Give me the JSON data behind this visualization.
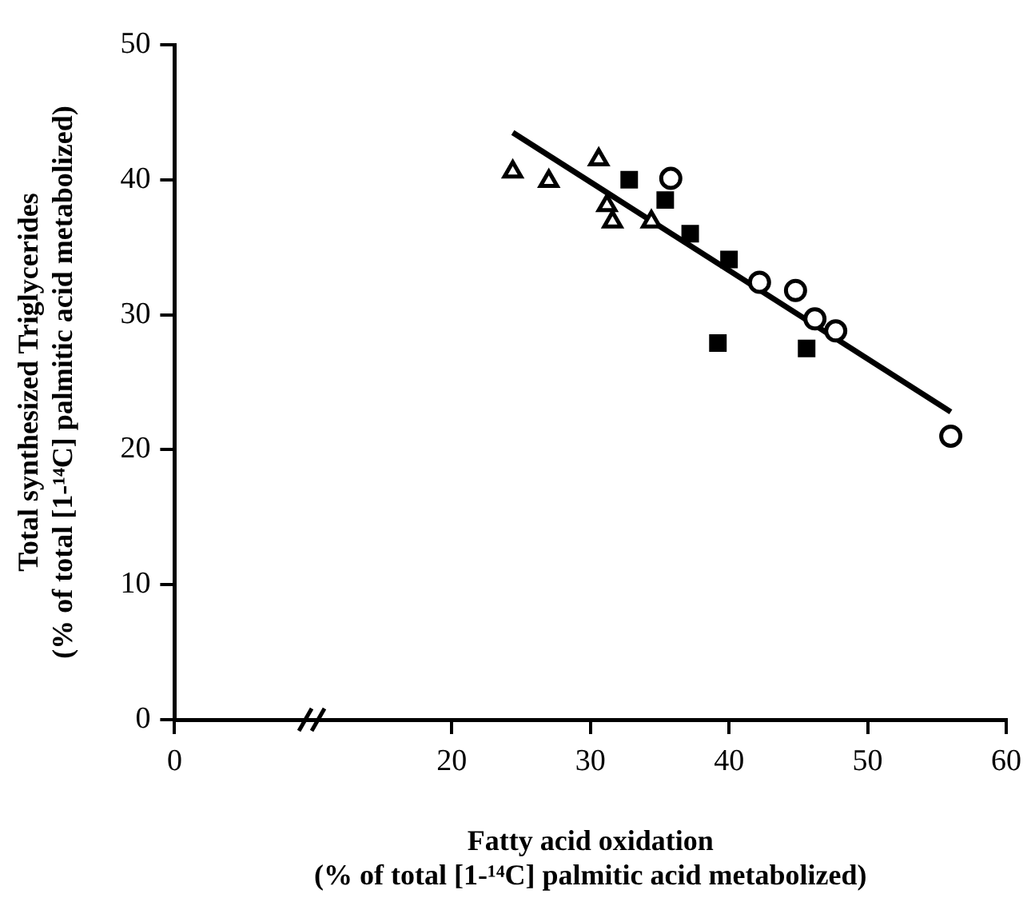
{
  "chart_data": {
    "type": "scatter",
    "xlabel": "Fatty acid oxidation\n(% of total [1-¹⁴C] palmitic acid metabolized)",
    "ylabel": "Total synthesized Triglycerides\n(% of total [1-¹⁴C] palmitic acid metabolized)",
    "xlim": [
      0,
      60
    ],
    "xticks": [
      0,
      20,
      30,
      40,
      50,
      60
    ],
    "ylim": [
      0,
      50
    ],
    "yticks": [
      0,
      10,
      20,
      30,
      40,
      50
    ],
    "grid": false,
    "legend": false,
    "series": [
      {
        "type": "scatter",
        "color": "#000000",
        "marker": "triangle",
        "x": [
          24.4,
          27.0,
          30.6,
          31.2,
          31.6,
          34.4
        ],
        "values": [
          40.6,
          39.9,
          41.5,
          38.1,
          36.9,
          36.9
        ]
      },
      {
        "type": "scatter",
        "color": "#000000",
        "marker": "square",
        "x": [
          32.8,
          35.4,
          37.2,
          40.0,
          39.2,
          45.6
        ],
        "values": [
          40.0,
          38.5,
          36.0,
          34.1,
          27.9,
          27.5
        ]
      },
      {
        "type": "scatter",
        "color": "#000000",
        "marker": "circle",
        "x": [
          35.8,
          42.2,
          44.8,
          46.2,
          47.7,
          56.0
        ],
        "values": [
          40.1,
          32.4,
          31.8,
          29.7,
          28.8,
          21.0
        ]
      },
      {
        "type": "line",
        "color": "#000000",
        "marker": "none",
        "x": [
          24.4,
          56.0
        ],
        "values": [
          43.5,
          22.8
        ]
      }
    ]
  }
}
